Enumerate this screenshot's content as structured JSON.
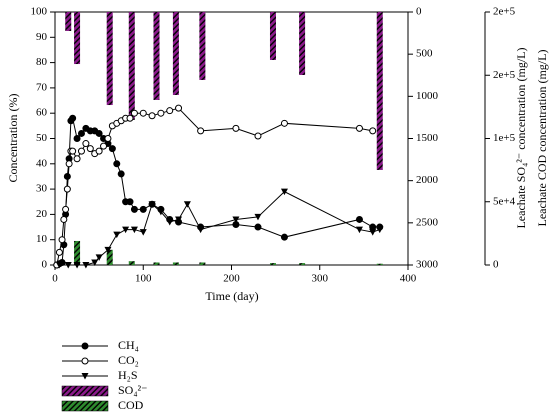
{
  "chart_data": {
    "type": "line",
    "xlabel": "Time (day)",
    "ylabel": "Concentration (%)",
    "y2label": "Leachate SO₄²⁻ concentration (mg/L)",
    "y3label": "Leachate COD concentration (mg/L)",
    "xlim": [
      0,
      400
    ],
    "xticks": [
      0,
      100,
      200,
      300,
      400
    ],
    "ylim": [
      0,
      100
    ],
    "yticks": [
      0,
      10,
      20,
      30,
      40,
      50,
      60,
      70,
      80,
      90,
      100
    ],
    "y2lim": [
      0,
      3000
    ],
    "y2_inverted": true,
    "y2ticks": [
      0,
      500,
      1000,
      1500,
      2000,
      2500,
      3000
    ],
    "y3lim": [
      0,
      200000
    ],
    "y3ticks": [
      0,
      {
        "value": 50000,
        "label": "5e+4"
      },
      {
        "value": 100000,
        "label": "1e+5"
      },
      {
        "value": 150000,
        "label": "2e+5"
      },
      {
        "value": 200000,
        "label": "2e+5"
      }
    ],
    "series": [
      {
        "name": "CH₄",
        "kind": "line",
        "marker": "circle-filled",
        "color": "#000000",
        "x": [
          2,
          5,
          8,
          10,
          12,
          14,
          16,
          18,
          20,
          25,
          30,
          35,
          40,
          45,
          50,
          55,
          60,
          65,
          70,
          75,
          80,
          85,
          90,
          100,
          110,
          120,
          130,
          140,
          165,
          205,
          230,
          260,
          345,
          360,
          368
        ],
        "values": [
          0,
          0.5,
          1,
          8,
          20,
          35,
          42,
          57,
          58,
          50,
          52,
          54,
          53,
          53,
          52,
          50,
          48,
          46,
          40,
          36,
          25,
          25,
          22,
          22,
          24,
          22,
          18,
          17,
          15,
          16,
          15,
          11,
          18,
          15,
          15
        ]
      },
      {
        "name": "CO₂",
        "kind": "line",
        "marker": "circle-open",
        "color": "#000000",
        "x": [
          2,
          5,
          8,
          10,
          12,
          14,
          16,
          18,
          20,
          25,
          30,
          35,
          40,
          45,
          50,
          55,
          60,
          65,
          70,
          75,
          80,
          85,
          90,
          100,
          110,
          120,
          130,
          140,
          165,
          205,
          230,
          260,
          345,
          360
        ],
        "values": [
          0,
          5,
          10,
          18,
          22,
          30,
          40,
          45,
          45,
          42,
          45,
          48,
          46,
          44,
          45,
          47,
          50,
          55,
          56,
          57,
          58,
          58,
          60,
          60,
          59,
          60,
          61,
          62,
          53,
          54,
          51,
          56,
          54,
          53
        ]
      },
      {
        "name": "H₂S",
        "kind": "line",
        "marker": "triangle-down",
        "color": "#000000",
        "x": [
          5,
          15,
          25,
          35,
          45,
          50,
          60,
          70,
          80,
          90,
          100,
          110,
          120,
          130,
          140,
          150,
          165,
          205,
          230,
          260,
          345,
          360,
          368
        ],
        "values": [
          0,
          0,
          0,
          0,
          1,
          3,
          6,
          12,
          14,
          14,
          13,
          24,
          21,
          17,
          18,
          24,
          14,
          18,
          19,
          29,
          14,
          13,
          14
        ]
      },
      {
        "name": "SO₄²⁻",
        "kind": "bar",
        "axis": "y2",
        "color": "#8b1a8b",
        "hatch": true,
        "x": [
          15,
          25,
          62,
          87,
          115,
          137,
          167,
          247,
          280,
          368
        ],
        "values": [
          225,
          617,
          1103,
          1280,
          1043,
          984,
          806,
          569,
          747,
          1873
        ]
      },
      {
        "name": "COD",
        "kind": "bar",
        "axis": "y3",
        "color": "#2e8b2e",
        "hatch": true,
        "x": [
          25,
          62,
          87,
          115,
          137,
          167,
          247,
          280,
          368
        ],
        "values": [
          19000,
          12000,
          3000,
          2000,
          2000,
          2000,
          1500,
          1500,
          1000
        ]
      }
    ]
  }
}
